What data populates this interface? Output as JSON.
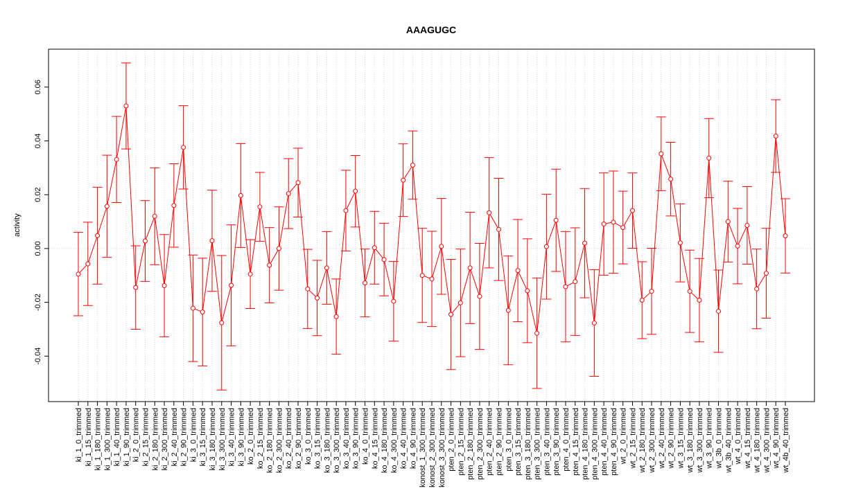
{
  "chart_data": {
    "type": "errorbar-line",
    "title": "AAAGUGC",
    "y_label": "activity",
    "categories": [
      "ki_1_0_trimmed",
      "ki_1_15_trimmed",
      "ki_1_180_trimmed",
      "ki_1_300_trimmed",
      "ki_1_40_trimmed",
      "ki_1_90_trimmed",
      "ki_2_0_trimmed",
      "ki_2_15_trimmed",
      "ki_2_180_trimmed",
      "ki_2_300_trimmed",
      "ki_2_40_trimmed",
      "ki_2_90_trimmed",
      "ki_3_0_trimmed",
      "ki_3_15_trimmed",
      "ki_3_180_trimmed",
      "ki_3_300_trimmed",
      "ki_3_40_trimmed",
      "ki_3_90_trimmed",
      "ko_2_0_trimmed",
      "ko_2_15_trimmed",
      "ko_2_180_trimmed",
      "ko_2_300_trimmed",
      "ko_2_40_trimmed",
      "ko_2_90_trimmed",
      "ko_3_0_trimmed",
      "ko_3_15_trimmed",
      "ko_3_180_trimmed",
      "ko_3_300_trimmed",
      "ko_3_40_trimmed",
      "ko_3_90_trimmed",
      "ko_4_0_trimmed",
      "ko_4_15_trimmed",
      "ko_4_180_trimmed",
      "ko_4_300_trimmed",
      "ko_4_40_trimmed",
      "ko_4_90_trimmed",
      "konost_1_300_trimmed",
      "konost_2_300_trimmed",
      "konost_3_300_trimmed",
      "pten_2_0_trimmed",
      "pten_2_15_trimmed",
      "pten_2_180_trimmed",
      "pten_2_300_trimmed",
      "pten_2_40_trimmed",
      "pten_2_90_trimmed",
      "pten_3_0_trimmed",
      "pten_3_15_trimmed",
      "pten_3_180_trimmed",
      "pten_3_300_trimmed",
      "pten_3_40_trimmed",
      "pten_3_90_trimmed",
      "pten_4_0_trimmed",
      "pten_4_15_trimmed",
      "pten_4_180_trimmed",
      "pten_4_300_trimmed",
      "pten_4_40_trimmed",
      "pten_4_90_trimmed",
      "wt_2_0_trimmed",
      "wt_2_15_trimmed",
      "wt_2_180_trimmed",
      "wt_2_300_trimmed",
      "wt_2_40_trimmed",
      "wt_2_90_trimmed",
      "wt_3_15_trimmed",
      "wt_3_180_trimmed",
      "wt_3_300_trimmed",
      "wt_3_90_trimmed",
      "wt_3b_0_trimmed",
      "wt_3b_40_trimmed",
      "wt_4_0_trimmed",
      "wt_4_15_trimmed",
      "wt_4_180_trimmed",
      "wt_4_300_trimmed",
      "wt_4_90_trimmed",
      "wt_4b_40_trimmed"
    ],
    "values": [
      -0.0095,
      -0.0057,
      0.0048,
      0.0157,
      0.0331,
      0.053,
      -0.0145,
      0.0028,
      0.012,
      -0.0138,
      0.016,
      0.0376,
      -0.0222,
      -0.0236,
      0.0029,
      -0.0276,
      -0.0137,
      0.0197,
      -0.0095,
      0.0155,
      -0.0062,
      0.0,
      0.0204,
      0.0245,
      -0.015,
      -0.0184,
      -0.0072,
      -0.0253,
      0.0141,
      0.0213,
      -0.0128,
      0.0003,
      -0.0041,
      -0.0196,
      0.0254,
      0.031,
      -0.01,
      -0.0113,
      0.0008,
      -0.0245,
      -0.0202,
      -0.0072,
      -0.0178,
      0.0133,
      0.0071,
      -0.023,
      -0.0082,
      -0.0157,
      -0.0315,
      0.0007,
      0.0105,
      -0.0142,
      -0.0123,
      0.002,
      -0.0277,
      0.0091,
      0.0098,
      0.0078,
      0.0141,
      -0.0192,
      -0.0159,
      0.0352,
      0.0258,
      0.0021,
      -0.0159,
      -0.0192,
      0.0336,
      -0.0233,
      0.01,
      0.0009,
      0.0086,
      -0.015,
      -0.0092,
      0.0418,
      0.0047
    ],
    "errors": [
      0.0155,
      0.0155,
      0.018,
      0.019,
      0.016,
      0.016,
      0.0155,
      0.015,
      0.018,
      0.019,
      0.0155,
      0.0155,
      0.0198,
      0.02,
      0.0188,
      0.025,
      0.0225,
      0.0193,
      0.0128,
      0.0128,
      0.014,
      0.0155,
      0.013,
      0.0128,
      0.0147,
      0.014,
      0.0135,
      0.014,
      0.015,
      0.0133,
      0.0126,
      0.0135,
      0.0135,
      0.0148,
      0.0135,
      0.0127,
      0.0175,
      0.0177,
      0.0178,
      0.0205,
      0.02,
      0.0207,
      0.0197,
      0.0205,
      0.019,
      0.0202,
      0.019,
      0.0193,
      0.0205,
      0.0195,
      0.019,
      0.0205,
      0.02,
      0.0203,
      0.0198,
      0.019,
      0.019,
      0.0135,
      0.014,
      0.0143,
      0.016,
      0.0137,
      0.0137,
      0.0145,
      0.0153,
      0.0155,
      0.0147,
      0.0153,
      0.015,
      0.014,
      0.0144,
      0.0148,
      0.0167,
      0.0135,
      0.0138
    ],
    "color": "#ff0000",
    "ylim": [
      -0.0569,
      0.0741
    ],
    "yticks": [
      -0.04,
      -0.02,
      {
        "value": 0,
        "label": "0.00"
      },
      0.02,
      0.04,
      0.06
    ],
    "reference_line": 0,
    "grid": true
  }
}
